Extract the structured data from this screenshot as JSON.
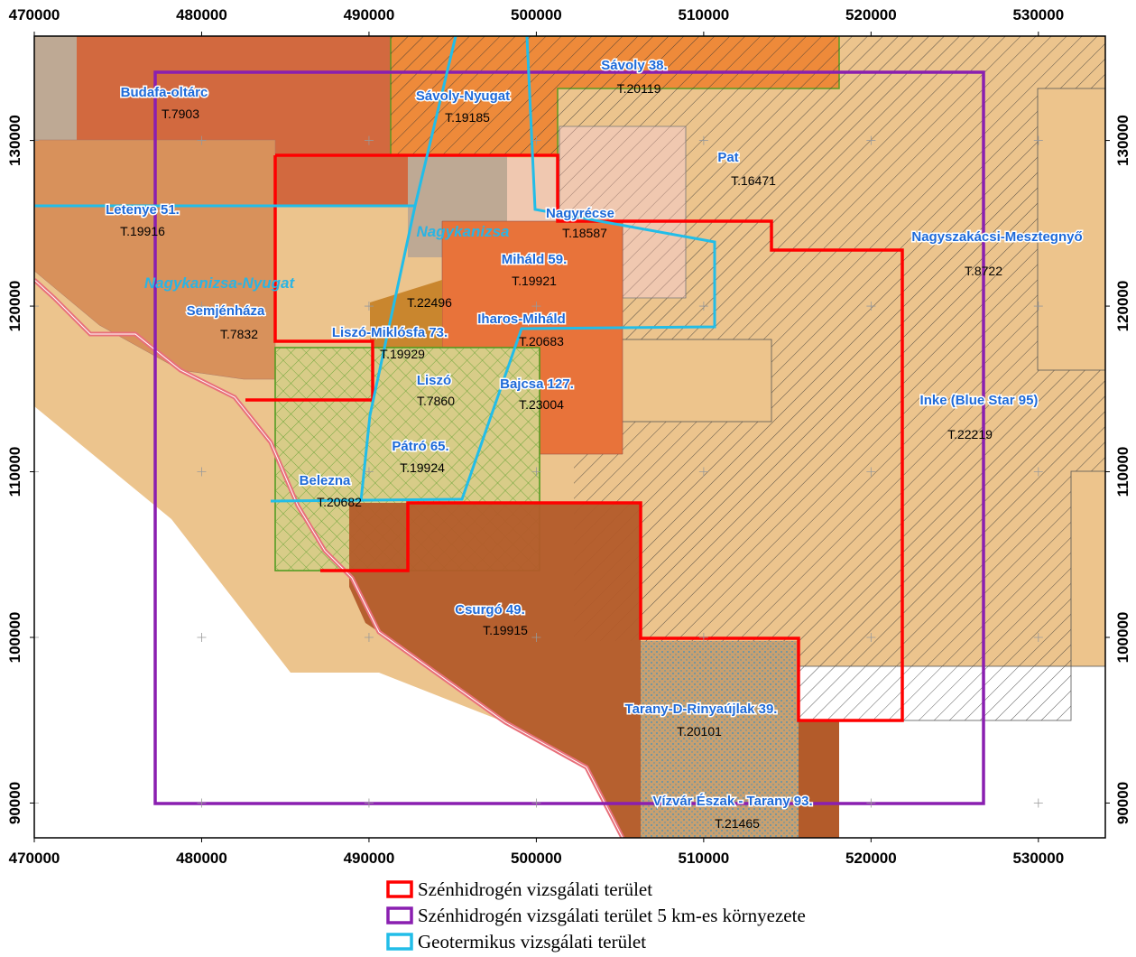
{
  "map": {
    "xlim": [
      470000,
      534000
    ],
    "ylim": [
      87900,
      136300
    ],
    "xticks": [
      470000,
      480000,
      490000,
      500000,
      510000,
      520000,
      530000
    ],
    "yticks": [
      90000,
      100000,
      110000,
      120000,
      130000
    ],
    "areas": [
      {
        "name": "Budafa-oltárc",
        "code": "T.7903"
      },
      {
        "name": "Sávoly-Nyugat",
        "code": "T.19185"
      },
      {
        "name": "Sávoly 38.",
        "code": "T.20119"
      },
      {
        "name": "Pat",
        "code": "T.16471"
      },
      {
        "name": "Nagyrécse",
        "code": "T.18587"
      },
      {
        "name": "Letenye 51.",
        "code": "T.19916"
      },
      {
        "name": "Nagyszakácsi-Mesztegnyő",
        "code": "T.8722"
      },
      {
        "name": "Miháld 59.",
        "code": "T.19921"
      },
      {
        "code": "T.22496"
      },
      {
        "name": "Semjénháza",
        "code": "T.7832"
      },
      {
        "name": "Liszó-Miklósfa 73.",
        "code": "T.19929"
      },
      {
        "name": "Iharos-Miháld",
        "code": "T.20683"
      },
      {
        "name": "Liszó",
        "code": "T.7860"
      },
      {
        "name": "Bajcsa 127.",
        "code": "T.23004"
      },
      {
        "name": "Inke (Blue Star 95)",
        "code": "T.22219"
      },
      {
        "name": "Pátró 65.",
        "code": "T.19924"
      },
      {
        "name": "Belezna",
        "code": "T.20682"
      },
      {
        "name": "Csurgó 49.",
        "code": "T.19915"
      },
      {
        "name": "Tarany-D-Rinyaújlak 39.",
        "code": "T.20101"
      },
      {
        "name": "Vízvár Észak - Tarany 93.",
        "code": "T.21465"
      }
    ],
    "region_labels": [
      "Nagykanizsa",
      "Nagykanizsa-Nyugat"
    ],
    "legend": [
      {
        "label": "Szénhidrogén vizsgálati terület",
        "color": "#ff0000"
      },
      {
        "label": "Szénhidrogén vizsgálati terület 5 km-es környezete",
        "color": "#8a1fb0"
      },
      {
        "label": "Geotermikus vizsgálati terület",
        "color": "#22bde8"
      }
    ]
  }
}
